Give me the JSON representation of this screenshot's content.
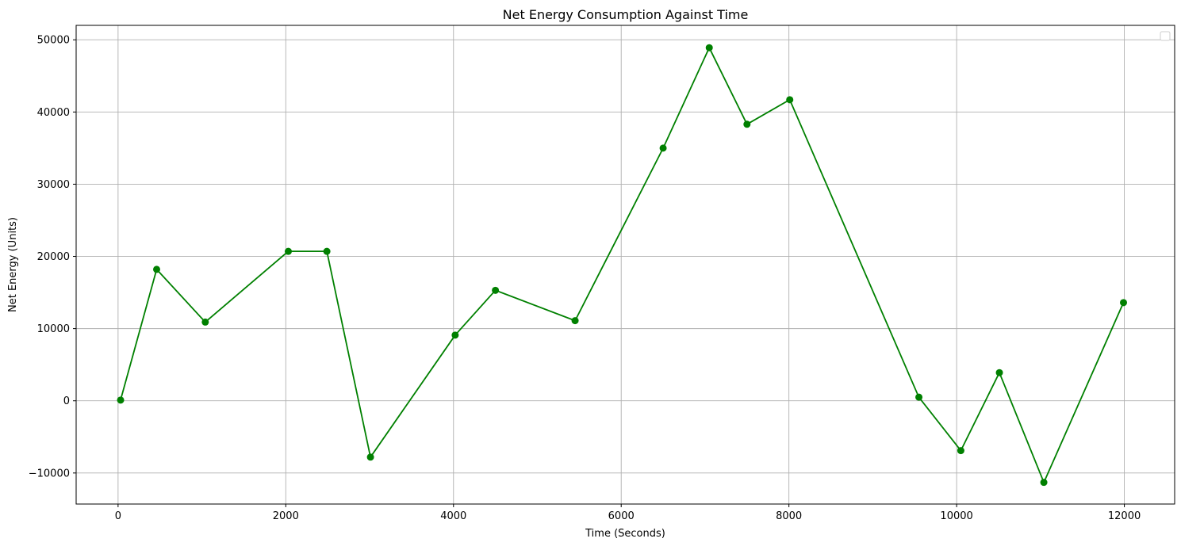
{
  "chart_data": {
    "type": "line",
    "title": "Net Energy Consumption Against Time",
    "xlabel": "Time (Seconds)",
    "ylabel": "Net Energy (Units)",
    "xlim": [
      -500,
      12600
    ],
    "ylim": [
      -14300,
      52000
    ],
    "xticks": [
      0,
      2000,
      4000,
      6000,
      8000,
      10000,
      12000
    ],
    "xtick_labels": [
      "0",
      "2000",
      "4000",
      "6000",
      "8000",
      "10000",
      "12000"
    ],
    "yticks": [
      -10000,
      0,
      10000,
      20000,
      30000,
      40000,
      50000
    ],
    "ytick_labels": [
      "−10000",
      "0",
      "10000",
      "20000",
      "30000",
      "40000",
      "50000"
    ],
    "grid": true,
    "legend": "top-right",
    "legend_entries": [],
    "series": [
      {
        "color": "#008000",
        "marker": "circle",
        "x": [
          30,
          460,
          1040,
          2030,
          2490,
          3010,
          4020,
          4500,
          5450,
          6500,
          7050,
          7500,
          8010,
          9550,
          10050,
          10510,
          11040,
          11990
        ],
        "y": [
          100,
          18200,
          10900,
          20700,
          20700,
          -7800,
          9100,
          15300,
          11100,
          35000,
          48900,
          38300,
          41700,
          500,
          -6900,
          3900,
          -11300,
          13600
        ]
      }
    ]
  }
}
